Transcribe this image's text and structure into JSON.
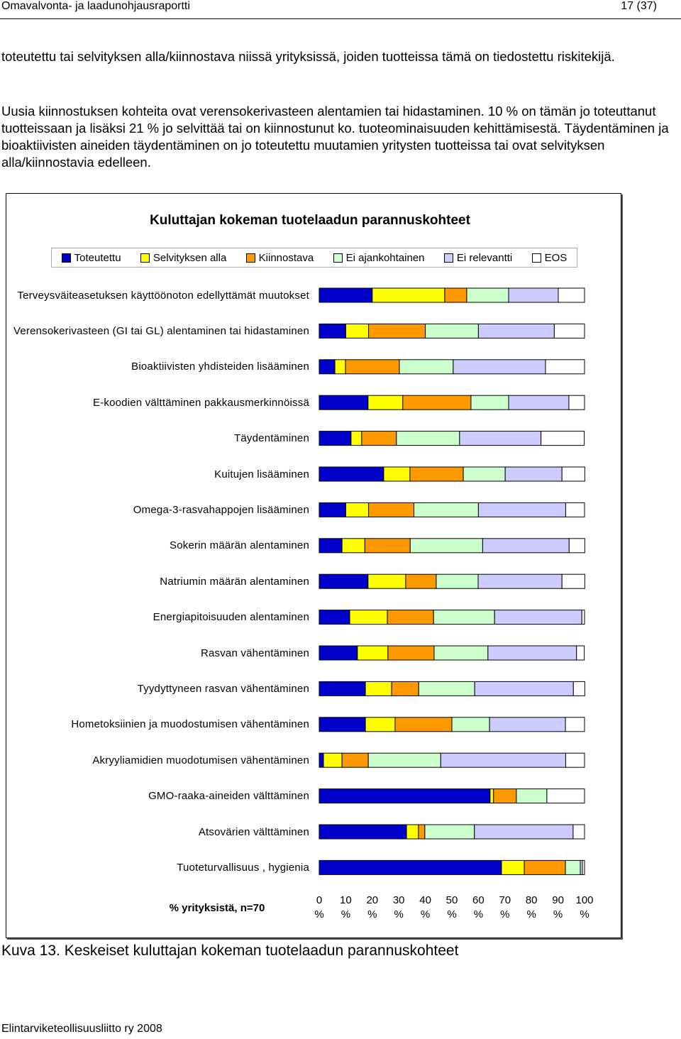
{
  "header": {
    "left": "Omavalvonta- ja laadunohjausraportti",
    "right": "17 (37)"
  },
  "paragraphs": [
    "toteutettu tai selvityksen alla/kiinnostava niissä yrityksissä, joiden tuotteissa tämä on tiedostettu riskitekijä.",
    "Uusia kiinnostuksen kohteita ovat verensokerivasteen alentamien tai hidastaminen. 10 % on tämän jo toteuttanut tuotteissaan ja lisäksi 21 % jo selvittää tai on kiinnostunut ko.  tuoteominaisuuden kehittämisestä. Täydentäminen ja bioaktiivisten aineiden täydentäminen on jo toteutettu muutamien yritysten tuotteissa tai ovat selvityksen alla/kiinnostavia edelleen."
  ],
  "chart_data": {
    "type": "bar",
    "orientation": "horizontal",
    "stacked": true,
    "title": "Kuluttajan kokeman tuotelaadun parannuskohteet",
    "xlabel": "% yrityksistä, n=70",
    "categories": [
      "Terveysväiteasetuksen käyttöönoton edellyttämät muutokset",
      "Verensokerivasteen (GI tai GL) alentaminen tai hidastaminen",
      "Bioaktiivisten yhdisteiden lisääminen",
      "E-koodien välttäminen pakkausmerkinnöissä",
      "Täydentäminen",
      "Kuitujen lisääminen",
      "Omega-3-rasvahappojen lisääminen",
      "Sokerin määrän alentaminen",
      "Natriumin määrän alentaminen",
      "Energiapitoisuuden alentaminen",
      "Rasvan vähentäminen",
      "Tyydyttyneen rasvan vähentäminen",
      "Hometoksiinien ja muodostumisen vähentäminen",
      "Akryyliamidien muodotumisen vähentäminen",
      "GMO-raaka-aineiden välttäminen",
      "Atsovärien välttäminen",
      "Tuoteturvallisuus , hygienia"
    ],
    "series": [
      {
        "name": "Toteutettu",
        "color": "#0000cc",
        "values": [
          20,
          10,
          5.9,
          18.4,
          12,
          24.3,
          10,
          8.6,
          18.4,
          11.5,
          14.4,
          17.4,
          17.4,
          1.6,
          64.4,
          32.9,
          68.7
        ]
      },
      {
        "name": "Selvityksen alla",
        "color": "#ffff00",
        "values": [
          27.3,
          8.6,
          4,
          13.1,
          4,
          9.9,
          8.6,
          8.6,
          14.2,
          14.2,
          11.5,
          9.9,
          11.2,
          7,
          1.3,
          4.5,
          8.6
        ]
      },
      {
        "name": "Kiinnostava",
        "color": "#ff9900",
        "values": [
          8.3,
          21.4,
          20.3,
          25.7,
          13.1,
          20.1,
          17.1,
          17.1,
          11.5,
          17.4,
          17.4,
          10.2,
          21.4,
          9.9,
          8.6,
          2.4,
          15.5
        ]
      },
      {
        "name": "Ei ajankohtainen",
        "color": "#ccffcc",
        "values": [
          15.8,
          20,
          20.3,
          14.2,
          23.8,
          15.8,
          24.3,
          27.3,
          15.8,
          23,
          20.3,
          21.1,
          14.2,
          27.3,
          11.5,
          18.7,
          5.6
        ]
      },
      {
        "name": "Ei relevantti",
        "color": "#ccccff",
        "values": [
          18.7,
          28.6,
          34.8,
          22.7,
          30.7,
          21.4,
          32.9,
          32.6,
          31.6,
          32.9,
          33.4,
          37.2,
          28.6,
          47.1,
          0,
          37.2,
          0.8
        ]
      },
      {
        "name": "EOS",
        "color": "#ffffff",
        "values": [
          9.9,
          11.4,
          14.7,
          5.9,
          16.3,
          8.6,
          7.1,
          5.9,
          8.6,
          1,
          2.9,
          4.3,
          7.2,
          7.1,
          14.2,
          4.3,
          0.8
        ]
      }
    ],
    "xlim": [
      0,
      100
    ],
    "xticks": [
      {
        "value": 0,
        "label": "0 %"
      },
      {
        "value": 10,
        "label": "10 %"
      },
      {
        "value": 20,
        "label": "20 %"
      },
      {
        "value": 30,
        "label": "30 %"
      },
      {
        "value": 40,
        "label": "40 %"
      },
      {
        "value": 50,
        "label": "50 %"
      },
      {
        "value": 60,
        "label": "60 %"
      },
      {
        "value": 70,
        "label": "70 %"
      },
      {
        "value": 80,
        "label": "80 %"
      },
      {
        "value": 90,
        "label": "90 %"
      },
      {
        "value": 100,
        "label": "100 %"
      }
    ],
    "grid": false
  },
  "caption": "Kuva 13. Keskeiset kuluttajan kokeman tuotelaadun parannuskohteet",
  "footer": "Elintarviketeollisuusliitto ry 2008"
}
